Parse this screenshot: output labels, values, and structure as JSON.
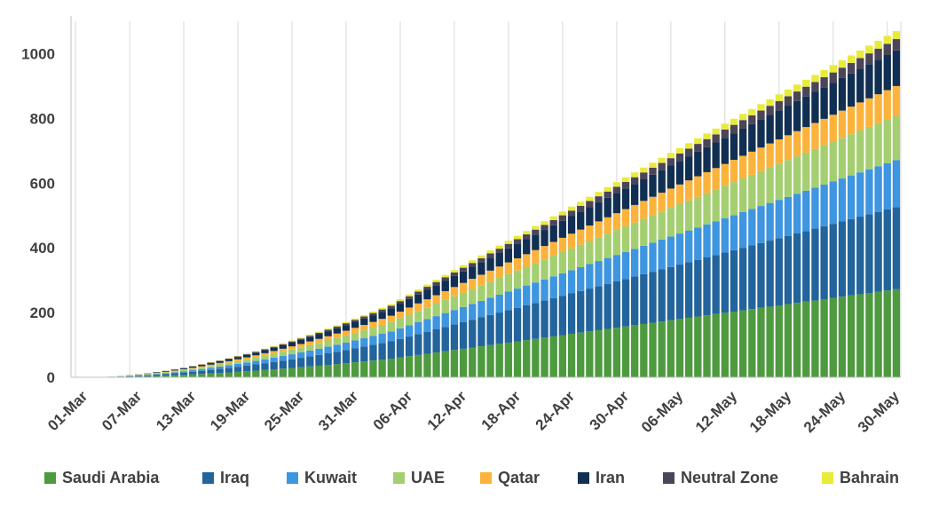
{
  "chart_data": {
    "type": "bar",
    "stacked": true,
    "x_start": "01-Mar",
    "x_end": "31-May",
    "x_tick_labels": [
      "01-Mar",
      "07-Mar",
      "13-Mar",
      "19-Mar",
      "25-Mar",
      "31-Mar",
      "06-Apr",
      "12-Apr",
      "18-Apr",
      "24-Apr",
      "30-Apr",
      "06-May",
      "12-May",
      "18-May",
      "24-May",
      "30-May"
    ],
    "y_ticks": [
      0,
      200,
      400,
      600,
      800,
      1000
    ],
    "ylim": [
      0,
      1100
    ],
    "grid": "vertical",
    "legend_position": "bottom",
    "title": "",
    "xlabel": "",
    "ylabel": "",
    "series": [
      {
        "name": "Saudi Arabia",
        "color": "#4e9a3f",
        "final_value": 272
      },
      {
        "name": "Iraq",
        "color": "#22649b",
        "final_value": 254
      },
      {
        "name": "Kuwait",
        "color": "#3e95e0",
        "final_value": 145
      },
      {
        "name": "UAE",
        "color": "#a4cf70",
        "final_value": 137
      },
      {
        "name": "Qatar",
        "color": "#fbb33b",
        "final_value": 92
      },
      {
        "name": "Iran",
        "color": "#112f52",
        "final_value": 110
      },
      {
        "name": "Neutral Zone",
        "color": "#4b4557",
        "final_value": 35
      },
      {
        "name": "Bahrain",
        "color": "#e9ea3a",
        "final_value": 25
      }
    ]
  }
}
